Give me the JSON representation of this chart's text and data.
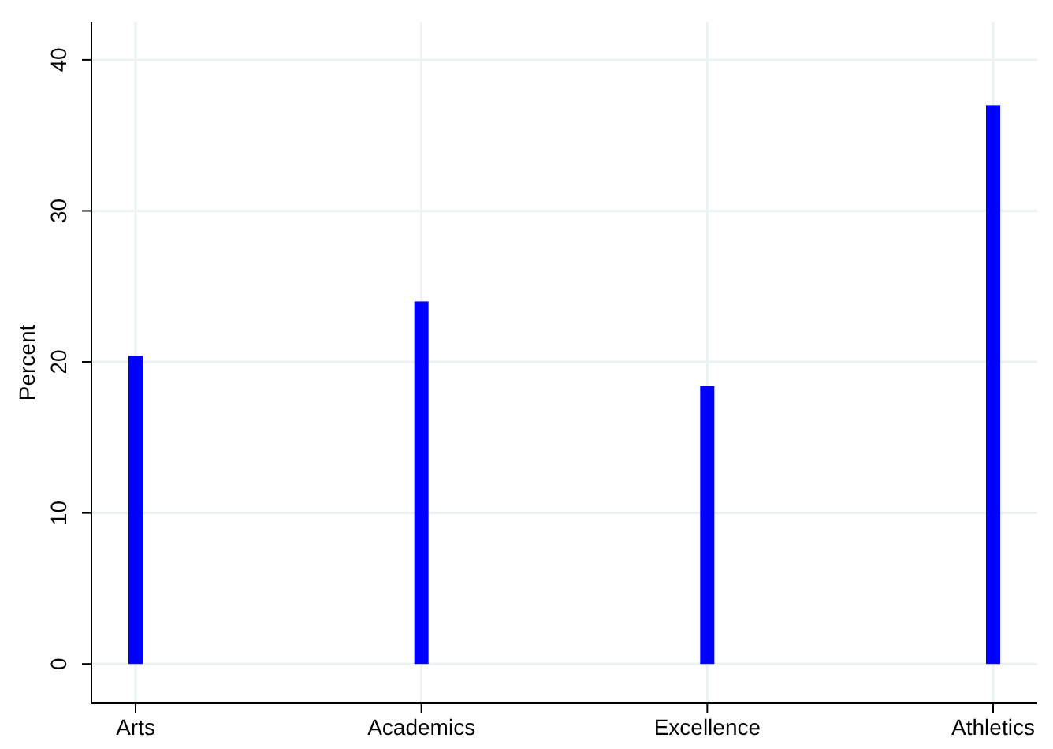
{
  "chart_data": {
    "type": "bar",
    "ylabel": "Percent",
    "categories": [
      "Arts",
      "Academics",
      "Excellence",
      "Athletics"
    ],
    "values": [
      20.4,
      24.0,
      18.4,
      37.0
    ],
    "color": "#0000ff",
    "ylim": [
      -2.6,
      42.5
    ],
    "yticks": [
      0,
      10,
      20,
      30,
      40
    ],
    "grid": true
  }
}
